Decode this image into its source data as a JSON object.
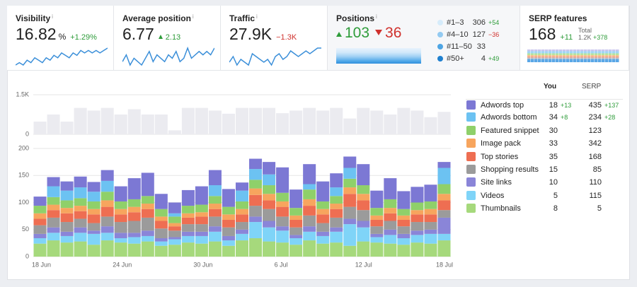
{
  "metrics": {
    "visibility": {
      "title": "Visibility",
      "info": "i",
      "value": "16.82",
      "unit": "%",
      "change": "+1.29%",
      "sparkline": [
        12,
        13,
        12,
        14,
        13,
        15,
        14,
        13,
        15,
        14,
        16,
        15,
        17,
        16,
        15,
        17,
        16,
        18,
        17,
        18,
        17,
        18,
        17,
        18,
        19
      ]
    },
    "average_position": {
      "title": "Average position",
      "info": "i",
      "value": "6.77",
      "change": "2.13",
      "sparkline": [
        5,
        7,
        4,
        6,
        5,
        4,
        6,
        8,
        5,
        7,
        6,
        5,
        7,
        6,
        8,
        5,
        6,
        9,
        6,
        7,
        8,
        7,
        8,
        7,
        9
      ]
    },
    "traffic": {
      "title": "Traffic",
      "info": "i",
      "value": "27.9K",
      "change": "−1.3K",
      "sparkline": [
        7,
        9,
        6,
        8,
        7,
        6,
        10,
        9,
        8,
        7,
        8,
        6,
        9,
        10,
        8,
        9,
        11,
        10,
        9,
        10,
        11,
        10,
        11,
        12,
        12
      ]
    },
    "positions": {
      "title": "Positions",
      "info": "i",
      "up": "103",
      "down": "36",
      "buckets": [
        {
          "label": "#1–3",
          "count": "306",
          "change": "+54"
        },
        {
          "label": "#4–10",
          "count": "127",
          "change": "−36"
        },
        {
          "label": "#11–50",
          "count": "33"
        },
        {
          "label": "#50+",
          "count": "4",
          "change": "+49"
        }
      ]
    },
    "serp_features": {
      "title": "SERP features",
      "value": "168",
      "change": "+11",
      "total_label": "Total",
      "total": "1.2K",
      "total_change": "+378"
    }
  },
  "chart_data": [
    {
      "type": "bar",
      "color": "#ebebf0",
      "values": [
        480,
        750,
        480,
        1000,
        900,
        1000,
        750,
        950,
        750,
        750,
        150,
        1000,
        1000,
        900,
        780,
        1000,
        1000,
        1000,
        800,
        900,
        1000,
        900,
        1000,
        600,
        1000,
        900,
        750,
        1000,
        900,
        650,
        850
      ],
      "ylim": [
        0,
        1500
      ],
      "yticks": [
        0,
        {
          "value": 1500,
          "label": "1.5K"
        }
      ]
    },
    {
      "type": "stacked_bar",
      "categories": [
        "18 Jun",
        null,
        null,
        null,
        null,
        null,
        "24 Jun",
        null,
        null,
        null,
        null,
        null,
        "30 Jun",
        null,
        null,
        null,
        null,
        null,
        "6 Jul",
        null,
        null,
        null,
        null,
        null,
        "12 Jul",
        null,
        null,
        null,
        null,
        null,
        "18 Jul"
      ],
      "ylim": [
        0,
        200
      ],
      "yticks": [
        0,
        50,
        100,
        150,
        200
      ],
      "series": [
        {
          "name": "Adwords top",
          "color": "#7c78d4",
          "values": [
            17,
            17,
            17,
            20,
            18,
            20,
            28,
            39,
            43,
            28,
            20,
            29,
            34,
            28,
            33,
            15,
            19,
            23,
            47,
            34,
            37,
            37,
            26,
            21,
            39,
            32,
            39,
            33,
            29,
            31,
            11
          ]
        },
        {
          "name": "Adwords bottom",
          "color": "#6cc2f2",
          "values": [
            0,
            20,
            18,
            20,
            18,
            20,
            0,
            0,
            0,
            0,
            6,
            0,
            0,
            20,
            0,
            20,
            20,
            20,
            0,
            0,
            10,
            0,
            16,
            20,
            0,
            0,
            0,
            0,
            0,
            0,
            30
          ]
        },
        {
          "name": "Featured snippet",
          "color": "#8fd06a",
          "values": [
            14,
            14,
            14,
            14,
            14,
            16,
            14,
            14,
            14,
            14,
            12,
            14,
            14,
            14,
            14,
            14,
            16,
            16,
            16,
            14,
            18,
            14,
            14,
            16,
            16,
            14,
            16,
            12,
            14,
            14,
            18
          ]
        },
        {
          "name": "Image pack",
          "color": "#f7a55e",
          "values": [
            10,
            10,
            10,
            10,
            10,
            12,
            10,
            10,
            10,
            8,
            6,
            8,
            8,
            10,
            10,
            10,
            12,
            12,
            10,
            8,
            12,
            10,
            10,
            12,
            12,
            8,
            10,
            8,
            8,
            10,
            12
          ]
        },
        {
          "name": "Top stories",
          "color": "#ee6e52",
          "values": [
            12,
            14,
            16,
            14,
            16,
            18,
            14,
            16,
            16,
            14,
            8,
            12,
            14,
            14,
            14,
            14,
            20,
            16,
            18,
            14,
            18,
            16,
            16,
            24,
            18,
            12,
            14,
            12,
            14,
            14,
            18
          ]
        },
        {
          "name": "Shopping results",
          "color": "#9b9b9b",
          "values": [
            16,
            18,
            18,
            16,
            14,
            18,
            20,
            22,
            24,
            18,
            12,
            14,
            14,
            18,
            16,
            14,
            20,
            22,
            18,
            14,
            20,
            16,
            18,
            22,
            20,
            14,
            16,
            14,
            16,
            14,
            14
          ]
        },
        {
          "name": "Site links",
          "color": "#8a85d8",
          "values": [
            8,
            10,
            8,
            10,
            6,
            12,
            10,
            8,
            10,
            6,
            4,
            8,
            8,
            10,
            8,
            8,
            10,
            12,
            8,
            6,
            10,
            8,
            8,
            10,
            12,
            6,
            10,
            8,
            8,
            8,
            30
          ]
        },
        {
          "name": "Videos",
          "color": "#7fd4f8",
          "values": [
            10,
            14,
            12,
            16,
            20,
            14,
            8,
            12,
            10,
            8,
            10,
            12,
            14,
            18,
            10,
            12,
            30,
            26,
            22,
            12,
            16,
            14,
            20,
            40,
            26,
            10,
            16,
            12,
            14,
            18,
            12
          ]
        },
        {
          "name": "Thumbnails",
          "color": "#a6d97c",
          "values": [
            24,
            30,
            26,
            28,
            22,
            30,
            26,
            24,
            28,
            20,
            22,
            26,
            24,
            28,
            20,
            30,
            34,
            28,
            26,
            22,
            30,
            24,
            26,
            20,
            28,
            26,
            24,
            22,
            26,
            24,
            30
          ]
        }
      ]
    }
  ],
  "legend_table": {
    "headers": [
      "You",
      "SERP"
    ],
    "rows": [
      {
        "you": "18",
        "you_change": "+13",
        "serp": "435",
        "serp_change": "+137"
      },
      {
        "you": "34",
        "you_change": "+8",
        "serp": "234",
        "serp_change": "+28"
      },
      {
        "you": "30",
        "serp": "123"
      },
      {
        "you": "33",
        "serp": "342"
      },
      {
        "you": "35",
        "serp": "168"
      },
      {
        "you": "15",
        "serp": "85"
      },
      {
        "you": "10",
        "serp": "110"
      },
      {
        "you": "5",
        "serp": "115"
      },
      {
        "you": "8",
        "serp": "5"
      }
    ]
  }
}
